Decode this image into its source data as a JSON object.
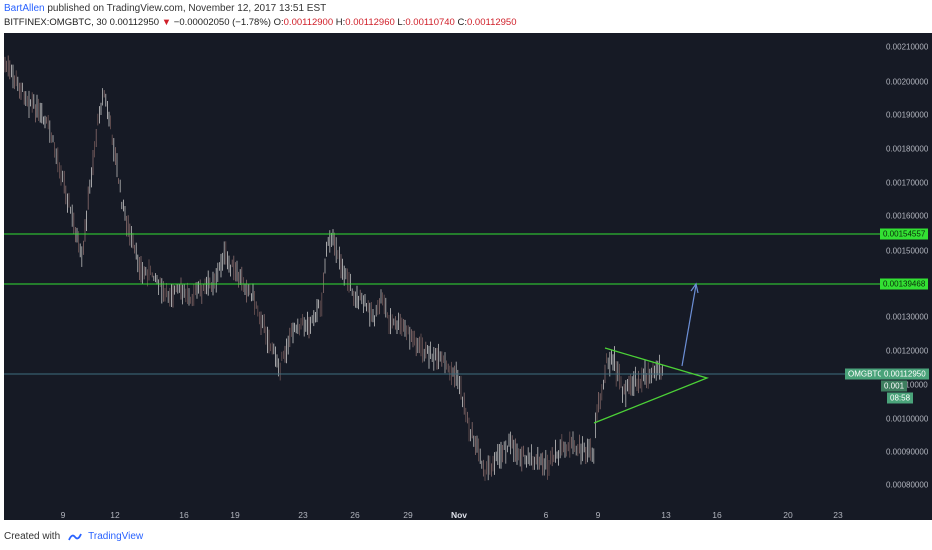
{
  "header": {
    "author": "BartAllen",
    "published": "published on TradingView.com, November 12, 2017 13:51 EST",
    "symbol": "BITFINEX:OMGBTC, 30",
    "last": "0.00112950",
    "change": "−0.00002050 (−1.78%)",
    "o_label": "O:",
    "o_value": "0.00112900",
    "h_label": "H:",
    "h_value": "0.00112960",
    "l_label": "L:",
    "l_value": "0.00110740",
    "c_label": "C:",
    "c_value": "0.00112950"
  },
  "yaxis": {
    "ticks": [
      "0.00210000",
      "0.00200000",
      "0.00190000",
      "0.00180000",
      "0.00170000",
      "0.00160000",
      "0.00150000",
      "0.00130000",
      "0.00120000",
      "0.00110000",
      "0.00100000",
      "0.00090000",
      "0.00080000"
    ]
  },
  "xaxis": {
    "ticks": [
      "9",
      "12",
      "16",
      "19",
      "23",
      "26",
      "29",
      "Nov",
      "6",
      "9",
      "13",
      "16",
      "20",
      "23"
    ]
  },
  "levels": {
    "upper": "0.00154557",
    "lower": "0.00139468"
  },
  "price_tag": {
    "symbol": "OMGBTC",
    "price": "0.00112950",
    "countdown": "08:58",
    "hidden_price_part": "0.001"
  },
  "footer": {
    "created_with": "Created with",
    "brand": "TradingView"
  },
  "colors": {
    "background": "#161a25",
    "level_line": "#33e033",
    "triangle": "#4cd137",
    "arrow": "#6c8fd6",
    "up": "#c8c8c8",
    "down": "#8a6d6d"
  }
}
